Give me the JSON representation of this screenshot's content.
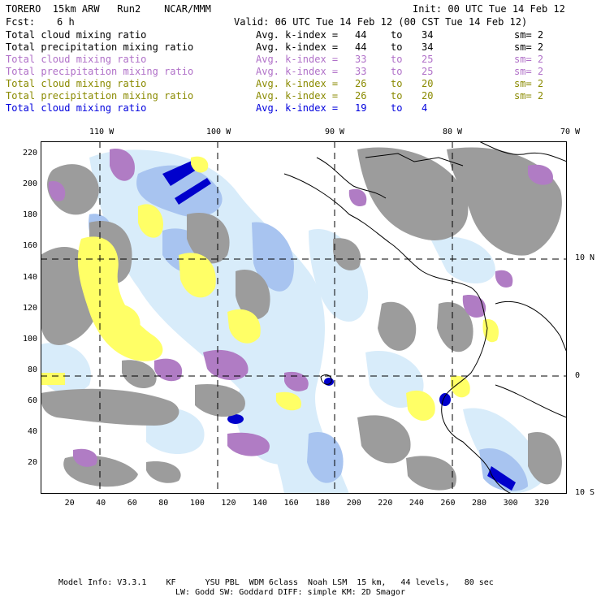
{
  "header": {
    "model": "TORERO  15km ARW   Run2    NCAR/MMM",
    "init": "Init: 00 UTC Tue 14 Feb 12",
    "fcst_label": "Fcst:",
    "fcst_value": "6 h",
    "valid": "Valid: 06 UTC Tue 14 Feb 12 (00 CST Tue 14 Feb 12)"
  },
  "legend_rows": [
    {
      "field": "Total cloud mixing ratio",
      "avg": "Avg. k-index =",
      "from": "44",
      "to": "to",
      "hi": "34",
      "sm": "sm= 2",
      "color": "#000000"
    },
    {
      "field": "Total precipitation mixing ratio",
      "avg": "Avg. k-index =",
      "from": "44",
      "to": "to",
      "hi": "34",
      "sm": "sm= 2",
      "color": "#000000"
    },
    {
      "field": "Total cloud mixing ratio",
      "avg": "Avg. k-index =",
      "from": "33",
      "to": "to",
      "hi": "25",
      "sm": "sm= 2",
      "color": "#b070c8"
    },
    {
      "field": "Total precipitation mixing ratio",
      "avg": "Avg. k-index =",
      "from": "33",
      "to": "to",
      "hi": "25",
      "sm": "sm= 2",
      "color": "#b070c8"
    },
    {
      "field": "Total cloud mixing ratio",
      "avg": "Avg. k-index =",
      "from": "26",
      "to": "to",
      "hi": "20",
      "sm": "sm= 2",
      "color": "#8a8a00"
    },
    {
      "field": "Total precipitation mixing ratio",
      "avg": "Avg. k-index =",
      "from": "26",
      "to": "to",
      "hi": "20",
      "sm": "sm= 2",
      "color": "#8a8a00"
    },
    {
      "field": "Total cloud mixing ratio",
      "avg": "Avg. k-index =",
      "from": "19",
      "to": "to",
      "hi": "4",
      "sm": "",
      "color": "#0000dd"
    }
  ],
  "map": {
    "top_lon_labels": [
      "110 W",
      "100 W",
      "90 W",
      "80 W",
      "70 W"
    ],
    "right_lat_labels": [
      "10 N",
      "0",
      "10 S"
    ],
    "x_grid_labels": [
      "20",
      "40",
      "60",
      "80",
      "100",
      "120",
      "140",
      "160",
      "180",
      "200",
      "220",
      "240",
      "260",
      "280",
      "300",
      "320"
    ],
    "y_grid_labels": [
      "220",
      "200",
      "180",
      "160",
      "140",
      "120",
      "100",
      "80",
      "60",
      "40",
      "20"
    ],
    "colors": {
      "gray": "#9c9c9c",
      "purple": "#b07cc4",
      "yellow": "#ffff66",
      "light_blue": "#d8ecfa",
      "mid_blue": "#a8c4f0",
      "dark_blue": "#0000cc",
      "coast": "#000000"
    }
  },
  "footer": {
    "line1": "Model Info: V3.3.1    KF      YSU PBL  WDM 6class  Noah LSM  15 km,   44 levels,   80 sec",
    "line2": "LW: Godd SW: Goddard DIFF: simple KM: 2D Smagor"
  }
}
